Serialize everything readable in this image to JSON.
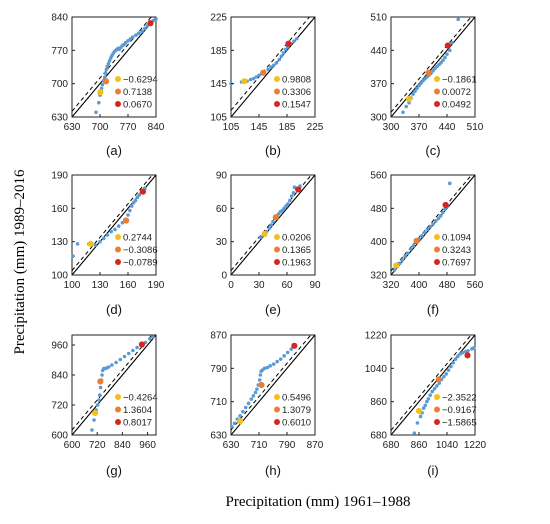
{
  "figure": {
    "xlabel": "Precipitation (mm) 1961–1988",
    "ylabel": "Precipitation (mm) 1989–2016"
  },
  "colors": {
    "scatter": "#5b9bd5",
    "legend_markers": [
      "#f2c01e",
      "#ed7d31",
      "#d9261c"
    ],
    "identity_line": "#000000",
    "fit_line": "#000000"
  },
  "chart_data": [
    {
      "type": "scatter",
      "label": "(a)",
      "xlim": [
        630,
        840
      ],
      "ylim": [
        630,
        840
      ],
      "xticks": [
        630,
        700,
        770,
        840
      ],
      "yticks": [
        630,
        700,
        770,
        840
      ],
      "dashed_line": {
        "slope": 1,
        "intercept": 12
      },
      "points": [
        [
          690,
          640
        ],
        [
          697,
          660
        ],
        [
          700,
          676
        ],
        [
          704,
          690
        ],
        [
          706,
          698
        ],
        [
          709,
          706
        ],
        [
          712,
          714
        ],
        [
          714,
          722
        ],
        [
          716,
          730
        ],
        [
          718,
          736
        ],
        [
          721,
          742
        ],
        [
          724,
          748
        ],
        [
          727,
          754
        ],
        [
          730,
          759
        ],
        [
          733,
          764
        ],
        [
          737,
          768
        ],
        [
          741,
          771
        ],
        [
          745,
          774
        ],
        [
          748,
          772
        ],
        [
          752,
          776
        ],
        [
          756,
          780
        ],
        [
          760,
          782
        ],
        [
          764,
          786
        ],
        [
          770,
          790
        ],
        [
          776,
          794
        ],
        [
          782,
          798
        ],
        [
          790,
          802
        ],
        [
          797,
          806
        ],
        [
          805,
          810
        ],
        [
          812,
          816
        ],
        [
          818,
          821
        ],
        [
          825,
          828
        ],
        [
          833,
          832
        ],
        [
          840,
          836
        ]
      ],
      "highlight": [
        [
          701,
          682
        ],
        [
          715,
          705
        ],
        [
          826,
          827
        ]
      ],
      "legend": [
        "−0.6294",
        "0.7138",
        "0.0670"
      ]
    },
    {
      "type": "scatter",
      "label": "(b)",
      "xlim": [
        105,
        225
      ],
      "ylim": [
        105,
        225
      ],
      "xticks": [
        105,
        145,
        185,
        225
      ],
      "yticks": [
        105,
        145,
        185,
        225
      ],
      "dashed_line": {
        "slope": 1,
        "intercept": 8
      },
      "points": [
        [
          105,
          145
        ],
        [
          120,
          147
        ],
        [
          128,
          148
        ],
        [
          133,
          150
        ],
        [
          137,
          151
        ],
        [
          141,
          153
        ],
        [
          145,
          155
        ],
        [
          149,
          157
        ],
        [
          153,
          159
        ],
        [
          158,
          162
        ],
        [
          162,
          165
        ],
        [
          166,
          167
        ],
        [
          170,
          170
        ],
        [
          174,
          174
        ],
        [
          177,
          178
        ],
        [
          180,
          182
        ],
        [
          183,
          186
        ],
        [
          186,
          189
        ],
        [
          190,
          193
        ],
        [
          195,
          196
        ],
        [
          199,
          199
        ]
      ],
      "highlight": [
        [
          124,
          148
        ],
        [
          151,
          158
        ],
        [
          187,
          193
        ]
      ],
      "legend": [
        "0.9808",
        "0.3306",
        "0.1547"
      ]
    },
    {
      "type": "scatter",
      "label": "(c)",
      "xlim": [
        300,
        510
      ],
      "ylim": [
        300,
        510
      ],
      "xticks": [
        300,
        370,
        440,
        510
      ],
      "yticks": [
        300,
        370,
        440,
        510
      ],
      "dashed_line": {
        "slope": 1,
        "intercept": 10
      },
      "points": [
        [
          330,
          310
        ],
        [
          338,
          322
        ],
        [
          345,
          330
        ],
        [
          350,
          340
        ],
        [
          355,
          348
        ],
        [
          360,
          354
        ],
        [
          365,
          360
        ],
        [
          370,
          366
        ],
        [
          375,
          371
        ],
        [
          380,
          376
        ],
        [
          385,
          380
        ],
        [
          390,
          384
        ],
        [
          395,
          388
        ],
        [
          400,
          392
        ],
        [
          405,
          397
        ],
        [
          410,
          402
        ],
        [
          415,
          406
        ],
        [
          420,
          410
        ],
        [
          425,
          414
        ],
        [
          430,
          419
        ],
        [
          435,
          425
        ],
        [
          440,
          432
        ],
        [
          447,
          440
        ],
        [
          452,
          456
        ],
        [
          468,
          505
        ]
      ],
      "highlight": [
        [
          345,
          338
        ],
        [
          394,
          393
        ],
        [
          442,
          450
        ]
      ],
      "legend": [
        "−0.1861",
        "0.0072",
        "0.0492"
      ]
    },
    {
      "type": "scatter",
      "label": "(d)",
      "xlim": [
        100,
        190
      ],
      "ylim": [
        100,
        190
      ],
      "xticks": [
        100,
        130,
        160,
        190
      ],
      "yticks": [
        100,
        130,
        160,
        190
      ],
      "dashed_line": {
        "slope": 1,
        "intercept": 4
      },
      "points": [
        [
          101,
          117
        ],
        [
          106,
          128
        ],
        [
          118,
          128
        ],
        [
          125,
          127
        ],
        [
          130,
          130
        ],
        [
          134,
          133
        ],
        [
          138,
          136
        ],
        [
          142,
          139
        ],
        [
          146,
          141
        ],
        [
          150,
          144
        ],
        [
          154,
          147
        ],
        [
          157,
          150
        ],
        [
          160,
          154
        ],
        [
          162,
          158
        ],
        [
          164,
          162
        ],
        [
          166,
          165
        ],
        [
          168,
          167
        ],
        [
          170,
          170
        ],
        [
          172,
          172
        ],
        [
          174,
          174
        ],
        [
          176,
          176
        ],
        [
          178,
          178
        ]
      ],
      "highlight": [
        [
          120,
          128
        ],
        [
          158,
          149
        ],
        [
          176,
          175
        ]
      ],
      "legend": [
        "0.2744",
        "−0.3086",
        "−0.0789"
      ]
    },
    {
      "type": "scatter",
      "label": "(e)",
      "xlim": [
        0,
        90
      ],
      "ylim": [
        0,
        90
      ],
      "xticks": [
        0,
        30,
        60,
        90
      ],
      "yticks": [
        0,
        30,
        60,
        90
      ],
      "dashed_line": {
        "slope": 1,
        "intercept": 4
      },
      "points": [
        [
          32,
          34
        ],
        [
          35,
          36
        ],
        [
          38,
          39
        ],
        [
          41,
          42
        ],
        [
          43,
          45
        ],
        [
          45,
          48
        ],
        [
          47,
          51
        ],
        [
          49,
          53
        ],
        [
          51,
          55
        ],
        [
          53,
          57
        ],
        [
          55,
          58
        ],
        [
          57,
          60
        ],
        [
          59,
          62
        ],
        [
          61,
          64
        ],
        [
          63,
          67
        ],
        [
          65,
          71
        ],
        [
          67,
          74
        ],
        [
          68,
          79
        ],
        [
          70,
          78
        ],
        [
          72,
          77
        ],
        [
          74,
          80
        ]
      ],
      "highlight": [
        [
          36,
          37
        ],
        [
          48,
          52
        ],
        [
          72,
          77
        ]
      ],
      "legend": [
        "0.0206",
        "0.1365",
        "0.1963"
      ]
    },
    {
      "type": "scatter",
      "label": "(f)",
      "xlim": [
        320,
        560
      ],
      "ylim": [
        320,
        560
      ],
      "xticks": [
        320,
        400,
        480,
        560
      ],
      "yticks": [
        320,
        400,
        480,
        560
      ],
      "dashed_line": {
        "slope": 1,
        "intercept": 10
      },
      "points": [
        [
          330,
          332
        ],
        [
          338,
          340
        ],
        [
          345,
          348
        ],
        [
          352,
          356
        ],
        [
          360,
          364
        ],
        [
          368,
          372
        ],
        [
          376,
          382
        ],
        [
          384,
          390
        ],
        [
          392,
          398
        ],
        [
          400,
          406
        ],
        [
          408,
          414
        ],
        [
          416,
          422
        ],
        [
          424,
          430
        ],
        [
          432,
          436
        ],
        [
          440,
          442
        ],
        [
          448,
          450
        ],
        [
          456,
          456
        ],
        [
          462,
          462
        ],
        [
          468,
          470
        ],
        [
          474,
          478
        ],
        [
          480,
          484
        ],
        [
          488,
          540
        ]
      ],
      "highlight": [
        [
          335,
          343
        ],
        [
          393,
          402
        ],
        [
          476,
          488
        ]
      ],
      "legend": [
        "0.1094",
        "0.3243",
        "0.7697"
      ]
    },
    {
      "type": "scatter",
      "label": "(g)",
      "xlim": [
        600,
        1000
      ],
      "ylim": [
        600,
        1000
      ],
      "xticks": [
        600,
        720,
        840,
        960
      ],
      "yticks": [
        600,
        720,
        840,
        960
      ],
      "dashed_line": {
        "slope": 1,
        "intercept": 20
      },
      "points": [
        [
          695,
          620
        ],
        [
          705,
          660
        ],
        [
          715,
          700
        ],
        [
          722,
          720
        ],
        [
          728,
          740
        ],
        [
          732,
          760
        ],
        [
          736,
          790
        ],
        [
          740,
          820
        ],
        [
          743,
          840
        ],
        [
          746,
          858
        ],
        [
          752,
          866
        ],
        [
          758,
          866
        ],
        [
          765,
          868
        ],
        [
          775,
          872
        ],
        [
          790,
          880
        ],
        [
          810,
          890
        ],
        [
          830,
          902
        ],
        [
          850,
          914
        ],
        [
          870,
          926
        ],
        [
          890,
          938
        ],
        [
          910,
          950
        ],
        [
          930,
          960
        ],
        [
          950,
          970
        ],
        [
          970,
          985
        ],
        [
          985,
          992
        ]
      ],
      "highlight": [
        [
          710,
          688
        ],
        [
          735,
          814
        ],
        [
          933,
          962
        ]
      ],
      "legend": [
        "−0.4264",
        "1.3604",
        "0.8017"
      ]
    },
    {
      "type": "scatter",
      "label": "(h)",
      "xlim": [
        630,
        870
      ],
      "ylim": [
        630,
        870
      ],
      "xticks": [
        630,
        710,
        790,
        870
      ],
      "yticks": [
        630,
        710,
        790,
        870
      ],
      "dashed_line": {
        "slope": 1,
        "intercept": 12
      },
      "points": [
        [
          632,
          650
        ],
        [
          640,
          658
        ],
        [
          648,
          668
        ],
        [
          656,
          676
        ],
        [
          664,
          686
        ],
        [
          672,
          696
        ],
        [
          680,
          706
        ],
        [
          688,
          716
        ],
        [
          694,
          724
        ],
        [
          700,
          732
        ],
        [
          704,
          740
        ],
        [
          708,
          750
        ],
        [
          712,
          762
        ],
        [
          714,
          774
        ],
        [
          716,
          783
        ],
        [
          720,
          786
        ],
        [
          726,
          790
        ],
        [
          734,
          792
        ],
        [
          742,
          796
        ],
        [
          752,
          800
        ],
        [
          762,
          806
        ],
        [
          772,
          812
        ],
        [
          782,
          820
        ],
        [
          792,
          828
        ],
        [
          802,
          836
        ],
        [
          810,
          842
        ]
      ],
      "highlight": [
        [
          656,
          663
        ],
        [
          717,
          750
        ],
        [
          811,
          844
        ]
      ],
      "legend": [
        "0.5496",
        "1.3079",
        "0.6010"
      ]
    },
    {
      "type": "scatter",
      "label": "(i)",
      "xlim": [
        680,
        1220
      ],
      "ylim": [
        680,
        1220
      ],
      "xticks": [
        680,
        860,
        1040,
        1220
      ],
      "yticks": [
        680,
        860,
        1040,
        1220
      ],
      "dashed_line": {
        "slope": 1,
        "intercept": 25
      },
      "points": [
        [
          830,
          690
        ],
        [
          850,
          745
        ],
        [
          870,
          780
        ],
        [
          880,
          800
        ],
        [
          890,
          825
        ],
        [
          900,
          840
        ],
        [
          910,
          860
        ],
        [
          920,
          875
        ],
        [
          932,
          895
        ],
        [
          945,
          915
        ],
        [
          960,
          930
        ],
        [
          975,
          945
        ],
        [
          990,
          960
        ],
        [
          1005,
          980
        ],
        [
          1020,
          995
        ],
        [
          1035,
          1010
        ],
        [
          1050,
          1030
        ],
        [
          1065,
          1050
        ],
        [
          1080,
          1070
        ],
        [
          1095,
          1090
        ],
        [
          1110,
          1105
        ],
        [
          1125,
          1118
        ],
        [
          1140,
          1125
        ],
        [
          1160,
          1130
        ],
        [
          1175,
          1135
        ],
        [
          1200,
          1145
        ],
        [
          1212,
          1150
        ]
      ],
      "highlight": [
        [
          860,
          810
        ],
        [
          988,
          980
        ],
        [
          1172,
          1110
        ]
      ],
      "legend": [
        "−2.3522",
        "−0.9167",
        "−1.5865"
      ]
    }
  ]
}
